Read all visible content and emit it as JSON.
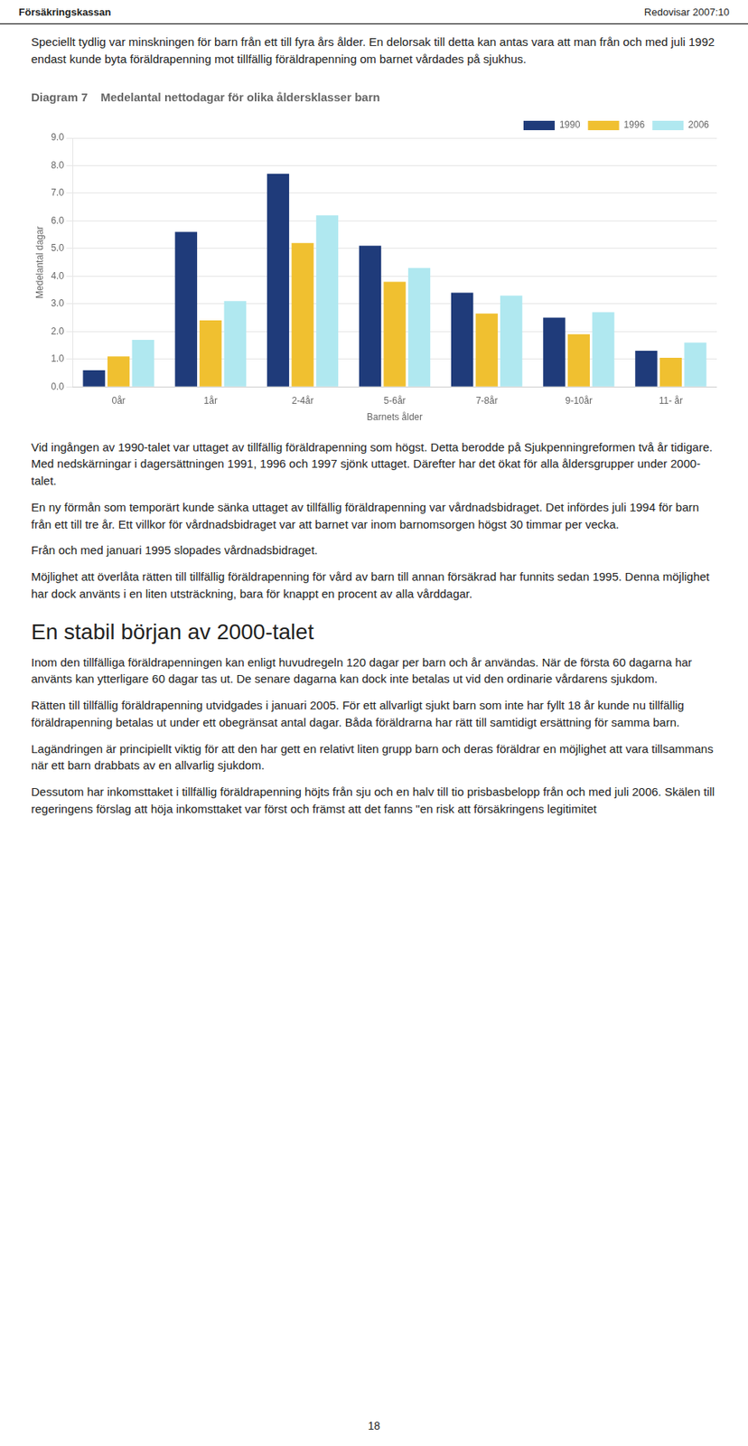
{
  "chart_data": {
    "type": "bar",
    "title": "Diagram 7    Medelantal nettodagar för olika åldersklasser barn",
    "xlabel": "Barnets ålder",
    "ylabel": "Medelantal dagar",
    "categories": [
      "0år",
      "1år",
      "2-4år",
      "5-6år",
      "7-8år",
      "9-10år",
      "11- år"
    ],
    "series": [
      {
        "name": "1990",
        "color": "#1F3B7A",
        "values": [
          0.6,
          5.6,
          7.7,
          5.1,
          3.4,
          2.5,
          1.3
        ]
      },
      {
        "name": "1996",
        "color": "#F0C030",
        "values": [
          1.1,
          2.4,
          5.2,
          3.8,
          2.65,
          1.9,
          1.05
        ]
      },
      {
        "name": "2006",
        "color": "#B0E8F0",
        "values": [
          1.7,
          3.1,
          6.2,
          4.3,
          3.3,
          2.7,
          1.6
        ]
      }
    ],
    "ylim": [
      0.0,
      9.0
    ],
    "yticks": [
      {
        "value": 0,
        "label": "0.0"
      },
      {
        "value": 1,
        "label": "1.0"
      },
      {
        "value": 2,
        "label": "2.0"
      },
      {
        "value": 3,
        "label": "3.0"
      },
      {
        "value": 4,
        "label": "4.0"
      },
      {
        "value": 5,
        "label": "5.0"
      },
      {
        "value": 6,
        "label": "6.0"
      },
      {
        "value": 7,
        "label": "7.0"
      },
      {
        "value": 8,
        "label": "8.0"
      },
      {
        "value": 9,
        "label": "9.0"
      }
    ],
    "grid": true,
    "legend": "upper right",
    "annotations": [
      "Försäkringskassan",
      "Redovisar 2007:10",
      "Speciellt tydlig var minskningen för barn från ett till fyra års ålder. En delorsak till detta kan antas vara att man från och med juli 1992 endast kunde byta föräldrapenning mot tillfällig föräldrapenning om barnet vårdades på sjukhus.",
      "Vid ingången av 1990-talet var uttaget av tillfällig föräldrapenning som högst. Detta berodde på Sjukpenningreformen två år tidigare. Med nedskärningar i dagersättningen 1991, 1996 och 1997 sjönk uttaget. Därefter har det ökat för alla åldersgrupper under 2000-talet.",
      "En ny förmån som temporärt kunde sänka uttaget av tillfällig föräldrapenning var vårdnadsbidraget. Det infördes juli 1994 för barn från ett till tre år. Ett villkor för vårdnadsbidraget var att barnet var inom barnomsorgen högst 30 timmar per vecka.",
      "Från och med januari 1995 slopades vårdnadsbidraget.",
      "Möjlighet att överlåta rätten till tillfällig föräldrapenning för vård av barn till annan försäkrad har funnits sedan 1995. Denna möjlighet har dock använts i en liten utsträckning, bara för knappt en procent av alla vårddagar.",
      "En stabil början av 2000-talet",
      "Inom den tillfälliga föräldrapenningen kan enligt huvudregeln 120 dagar per barn och år användas. När de första 60 dagarna har använts kan ytterligare 60 dagar tas ut. De senare dagarna kan dock inte betalas ut vid den ordinarie vårdarens sjukdom.",
      "Rätten till tillfällig föräldrapenning utvidgades i januari 2005. För ett allvarligt sjukt barn som inte har fyllt 18 år kunde nu tillfällig föräldrapenning betalas ut under ett obegränsat antal dagar. Båda föräldrarna har rätt till samtidigt ersättning för samma barn.",
      "Lagändringen är principiellt viktig för att den har gett en relativt liten grupp barn och deras föräldrar en möjlighet att vara tillsammans när ett barn drabbats av en allvarlig sjukdom.",
      "Dessutom har inkomsttaket i tillfällig föräldrapenning höjts från sju och en halv till tio prisbasbelopp från och med juli 2006. Skälen till regeringens förslag att höja inkomsttaket var först och främst att det fanns \"en risk att försäkringens legitimitet",
      "18"
    ]
  }
}
